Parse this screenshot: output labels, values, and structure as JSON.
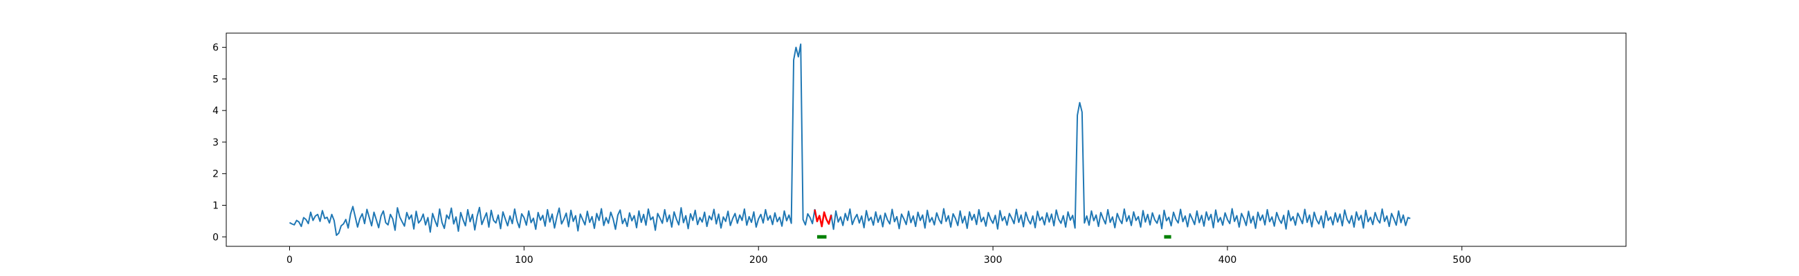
{
  "chart_data": {
    "type": "line",
    "title": "",
    "xlabel": "",
    "ylabel": "",
    "xlim": [
      -27,
      570
    ],
    "ylim": [
      -0.3,
      6.45
    ],
    "xticks": [
      0,
      100,
      200,
      300,
      400,
      500
    ],
    "yticks": [
      0,
      1,
      2,
      3,
      4,
      5,
      6
    ],
    "grid": false,
    "legend": "none",
    "colors": {
      "series": "#1f77b4",
      "highlight": "#ff0000",
      "marker": "#008000"
    },
    "series": [
      {
        "values": [
          0.45,
          0.41,
          0.38,
          0.52,
          0.47,
          0.33,
          0.61,
          0.55,
          0.42,
          0.78,
          0.52,
          0.66,
          0.71,
          0.49,
          0.83,
          0.58,
          0.62,
          0.44,
          0.71,
          0.52,
          0.05,
          0.12,
          0.35,
          0.41,
          0.55,
          0.28,
          0.72,
          0.96,
          0.64,
          0.31,
          0.58,
          0.73,
          0.42,
          0.87,
          0.61,
          0.35,
          0.78,
          0.54,
          0.29,
          0.66,
          0.82,
          0.45,
          0.38,
          0.71,
          0.57,
          0.21,
          0.92,
          0.63,
          0.48,
          0.34,
          0.77,
          0.56,
          0.69,
          0.25,
          0.81,
          0.44,
          0.53,
          0.72,
          0.38,
          0.61,
          0.15,
          0.74,
          0.52,
          0.33,
          0.88,
          0.46,
          0.27,
          0.69,
          0.57,
          0.91,
          0.41,
          0.63,
          0.18,
          0.77,
          0.54,
          0.35,
          0.86,
          0.48,
          0.71,
          0.22,
          0.65,
          0.93,
          0.39,
          0.58,
          0.76,
          0.31,
          0.84,
          0.52,
          0.44,
          0.69,
          0.26,
          0.79,
          0.57,
          0.35,
          0.66,
          0.42,
          0.88,
          0.51,
          0.29,
          0.73,
          0.61,
          0.37,
          0.82,
          0.45,
          0.59,
          0.24,
          0.77,
          0.53,
          0.68,
          0.34,
          0.86,
          0.47,
          0.72,
          0.28,
          0.63,
          0.91,
          0.41,
          0.56,
          0.75,
          0.32,
          0.84,
          0.49,
          0.67,
          0.19,
          0.72,
          0.55,
          0.38,
          0.81,
          0.46,
          0.64,
          0.27,
          0.74,
          0.52,
          0.89,
          0.36,
          0.61,
          0.43,
          0.78,
          0.57,
          0.24,
          0.69,
          0.85,
          0.42,
          0.58,
          0.33,
          0.76,
          0.51,
          0.67,
          0.29,
          0.82,
          0.46,
          0.71,
          0.37,
          0.88,
          0.54,
          0.63,
          0.21,
          0.74,
          0.59,
          0.43,
          0.86,
          0.48,
          0.69,
          0.31,
          0.79,
          0.56,
          0.38,
          0.92,
          0.45,
          0.67,
          0.26,
          0.73,
          0.52,
          0.84,
          0.39,
          0.61,
          0.47,
          0.78,
          0.33,
          0.66,
          0.54,
          0.87,
          0.41,
          0.72,
          0.28,
          0.63,
          0.49,
          0.81,
          0.36,
          0.58,
          0.74,
          0.43,
          0.69,
          0.52,
          0.88,
          0.37,
          0.64,
          0.46,
          0.79,
          0.31,
          0.57,
          0.71,
          0.44,
          0.86,
          0.53,
          0.67,
          0.39,
          0.76,
          0.48,
          0.62,
          0.34,
          0.82,
          0.51,
          0.69,
          0.43,
          5.6,
          6.0,
          5.7,
          6.1,
          0.55,
          0.38,
          0.73,
          0.61,
          0.42,
          0.86,
          0.49,
          0.67,
          0.33,
          0.78,
          0.55,
          0.41,
          0.69,
          0.24,
          0.82,
          0.47,
          0.63,
          0.36,
          0.74,
          0.52,
          0.88,
          0.39,
          0.58,
          0.71,
          0.44,
          0.66,
          0.29,
          0.83,
          0.51,
          0.62,
          0.37,
          0.79,
          0.46,
          0.68,
          0.32,
          0.75,
          0.54,
          0.41,
          0.87,
          0.48,
          0.64,
          0.26,
          0.72,
          0.57,
          0.39,
          0.81,
          0.45,
          0.66,
          0.33,
          0.78,
          0.52,
          0.69,
          0.28,
          0.84,
          0.47,
          0.61,
          0.38,
          0.76,
          0.55,
          0.42,
          0.89,
          0.49,
          0.67,
          0.31,
          0.73,
          0.58,
          0.36,
          0.82,
          0.44,
          0.65,
          0.27,
          0.79,
          0.53,
          0.71,
          0.39,
          0.86,
          0.48,
          0.62,
          0.34,
          0.77,
          0.56,
          0.43,
          0.68,
          0.25,
          0.83,
          0.51,
          0.64,
          0.37,
          0.74,
          0.59,
          0.42,
          0.87,
          0.46,
          0.69,
          0.32,
          0.78,
          0.54,
          0.41,
          0.66,
          0.29,
          0.81,
          0.52,
          0.63,
          0.38,
          0.76,
          0.47,
          0.72,
          0.35,
          0.85,
          0.56,
          0.43,
          0.67,
          0.31,
          0.79,
          0.53,
          0.68,
          0.28,
          3.85,
          4.25,
          3.95,
          0.44,
          0.66,
          0.37,
          0.82,
          0.51,
          0.69,
          0.33,
          0.77,
          0.58,
          0.41,
          0.86,
          0.46,
          0.63,
          0.29,
          0.74,
          0.55,
          0.42,
          0.88,
          0.49,
          0.67,
          0.36,
          0.79,
          0.52,
          0.64,
          0.31,
          0.83,
          0.47,
          0.71,
          0.38,
          0.76,
          0.54,
          0.43,
          0.69,
          0.26,
          0.84,
          0.51,
          0.62,
          0.35,
          0.78,
          0.56,
          0.44,
          0.87,
          0.48,
          0.66,
          0.32,
          0.73,
          0.57,
          0.39,
          0.82,
          0.45,
          0.68,
          0.34,
          0.79,
          0.53,
          0.71,
          0.29,
          0.85,
          0.47,
          0.61,
          0.37,
          0.76,
          0.55,
          0.42,
          0.89,
          0.49,
          0.67,
          0.31,
          0.74,
          0.58,
          0.36,
          0.81,
          0.44,
          0.65,
          0.27,
          0.78,
          0.52,
          0.69,
          0.38,
          0.86,
          0.48,
          0.63,
          0.34,
          0.77,
          0.56,
          0.43,
          0.68,
          0.25,
          0.83,
          0.51,
          0.64,
          0.37,
          0.75,
          0.59,
          0.42,
          0.87,
          0.46,
          0.69,
          0.32,
          0.78,
          0.54,
          0.41,
          0.66,
          0.29,
          0.82,
          0.52,
          0.63,
          0.38,
          0.76,
          0.47,
          0.72,
          0.35,
          0.85,
          0.56,
          0.43,
          0.67,
          0.31,
          0.79,
          0.53,
          0.68,
          0.28,
          0.84,
          0.48,
          0.62,
          0.39,
          0.77,
          0.55,
          0.44,
          0.88,
          0.49,
          0.66,
          0.33,
          0.74,
          0.57,
          0.37,
          0.82,
          0.45,
          0.69,
          0.36,
          0.61,
          0.58
        ],
        "color": "#1f77b4"
      }
    ],
    "highlight_range": [
      224,
      231
    ],
    "markers": [
      {
        "x_start": 225,
        "x_end": 229,
        "y": 0,
        "color": "#008000"
      },
      {
        "x_start": 373,
        "x_end": 376,
        "y": 0,
        "color": "#008000"
      }
    ]
  }
}
